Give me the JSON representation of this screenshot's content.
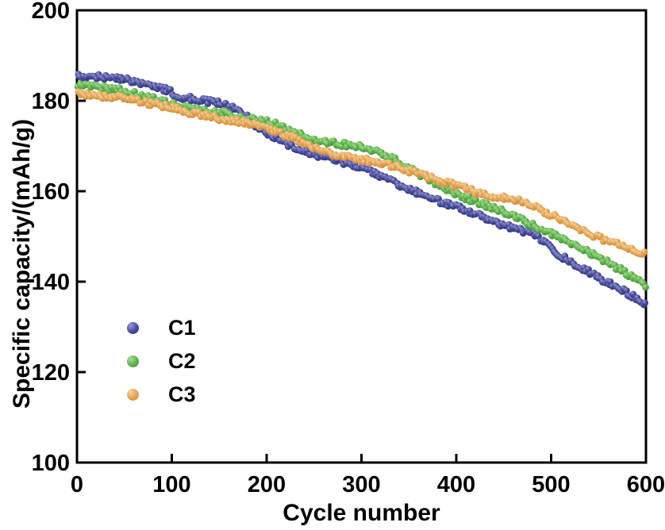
{
  "background": "#ffffff",
  "axis_color": "#000000",
  "chart_data": {
    "type": "scatter",
    "title": "",
    "xlabel": "Cycle number",
    "ylabel": "Specific capacity/(mAh/g)",
    "xlim": [
      0,
      600
    ],
    "ylim": [
      100,
      200
    ],
    "xticks": [
      0,
      100,
      200,
      300,
      400,
      500,
      600
    ],
    "yticks": [
      100,
      120,
      140,
      160,
      180,
      200
    ],
    "grid": false,
    "legend_position": "inside-lower-left",
    "marker_style": "3d-sphere-dot",
    "point_start_cycle": 1,
    "point_step_cycles": 2,
    "band_jitter_mAh_g": 0.55,
    "series": [
      {
        "name": "C1",
        "color": "#45499b",
        "highlight": "#9b99cd",
        "shadow": "#2e3175",
        "trend_anchors": [
          [
            0,
            185.5
          ],
          [
            40,
            184.6
          ],
          [
            70,
            183.7
          ],
          [
            98,
            182.2
          ],
          [
            104,
            181.0
          ],
          [
            150,
            179.4
          ],
          [
            172,
            177.6
          ],
          [
            200,
            172.9
          ],
          [
            235,
            169.8
          ],
          [
            268,
            167.4
          ],
          [
            300,
            164.9
          ],
          [
            310,
            164.0
          ],
          [
            350,
            160.3
          ],
          [
            400,
            156.2
          ],
          [
            445,
            152.7
          ],
          [
            470,
            151.4
          ],
          [
            484,
            150.6
          ],
          [
            512,
            146.0
          ],
          [
            545,
            141.7
          ],
          [
            575,
            138.1
          ],
          [
            600,
            135.0
          ]
        ]
      },
      {
        "name": "C2",
        "color": "#5cb34c",
        "highlight": "#aeda94",
        "shadow": "#3c8c32",
        "trend_anchors": [
          [
            0,
            183.6
          ],
          [
            40,
            182.5
          ],
          [
            80,
            180.6
          ],
          [
            120,
            178.8
          ],
          [
            150,
            177.7
          ],
          [
            159,
            177.4
          ],
          [
            165,
            176.6
          ],
          [
            200,
            175.3
          ],
          [
            238,
            172.0
          ],
          [
            265,
            170.7
          ],
          [
            300,
            169.6
          ],
          [
            332,
            167.1
          ],
          [
            352,
            165.1
          ],
          [
            359,
            164.2
          ],
          [
            400,
            159.9
          ],
          [
            452,
            155.3
          ],
          [
            482,
            152.3
          ],
          [
            512,
            149.4
          ],
          [
            545,
            145.8
          ],
          [
            575,
            142.0
          ],
          [
            600,
            138.7
          ]
        ]
      },
      {
        "name": "C3",
        "color": "#e4a351",
        "highlight": "#f3d3a2",
        "shadow": "#c5863a",
        "trend_anchors": [
          [
            0,
            182.2
          ],
          [
            40,
            181.1
          ],
          [
            80,
            179.0
          ],
          [
            120,
            177.2
          ],
          [
            160,
            175.7
          ],
          [
            200,
            173.8
          ],
          [
            240,
            170.6
          ],
          [
            268,
            168.5
          ],
          [
            300,
            167.6
          ],
          [
            340,
            165.2
          ],
          [
            380,
            162.4
          ],
          [
            400,
            161.2
          ],
          [
            430,
            159.1
          ],
          [
            458,
            157.8
          ],
          [
            474,
            157.2
          ],
          [
            492,
            155.1
          ],
          [
            516,
            153.0
          ],
          [
            550,
            150.2
          ],
          [
            580,
            147.9
          ],
          [
            600,
            146.4
          ]
        ]
      }
    ]
  }
}
